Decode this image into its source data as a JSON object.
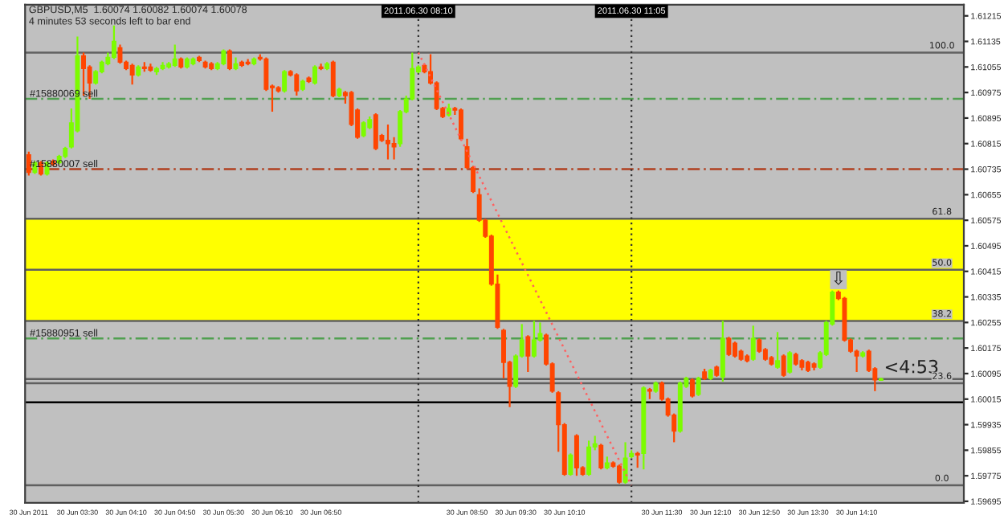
{
  "chart_data": {
    "type": "candlestick",
    "title": "GBPUSD,M5  1.60074 1.60082 1.60074 1.60078",
    "subtitle": "4 minutes 53 seconds left to bar end",
    "x": [
      "2011-06-30T02:50",
      "2011-06-30T02:55",
      "2011-06-30T03:00",
      "2011-06-30T03:05",
      "2011-06-30T03:10",
      "2011-06-30T03:15",
      "2011-06-30T03:20",
      "2011-06-30T03:25",
      "2011-06-30T03:30",
      "2011-06-30T03:35",
      "2011-06-30T03:40",
      "2011-06-30T03:45",
      "2011-06-30T03:50",
      "2011-06-30T03:55",
      "2011-06-30T04:00",
      "2011-06-30T04:05",
      "2011-06-30T04:10",
      "2011-06-30T04:15",
      "2011-06-30T04:20",
      "2011-06-30T04:25",
      "2011-06-30T04:30",
      "2011-06-30T04:35",
      "2011-06-30T04:40",
      "2011-06-30T04:45",
      "2011-06-30T04:50",
      "2011-06-30T04:55",
      "2011-06-30T05:00",
      "2011-06-30T05:05",
      "2011-06-30T05:10",
      "2011-06-30T05:15",
      "2011-06-30T05:20",
      "2011-06-30T05:25",
      "2011-06-30T05:30",
      "2011-06-30T05:35",
      "2011-06-30T05:40",
      "2011-06-30T05:45",
      "2011-06-30T05:50",
      "2011-06-30T05:55",
      "2011-06-30T06:00",
      "2011-06-30T06:05",
      "2011-06-30T06:10",
      "2011-06-30T06:15",
      "2011-06-30T06:20",
      "2011-06-30T06:25",
      "2011-06-30T06:30",
      "2011-06-30T06:35",
      "2011-06-30T06:40",
      "2011-06-30T06:45",
      "2011-06-30T06:50",
      "2011-06-30T06:55",
      "2011-06-30T07:00",
      "2011-06-30T07:05",
      "2011-06-30T07:10",
      "2011-06-30T07:15",
      "2011-06-30T07:20",
      "2011-06-30T07:25",
      "2011-06-30T07:30",
      "2011-06-30T07:35",
      "2011-06-30T07:40",
      "2011-06-30T07:45",
      "2011-06-30T07:50",
      "2011-06-30T07:55",
      "2011-06-30T08:00",
      "2011-06-30T08:05",
      "2011-06-30T08:10",
      "2011-06-30T08:15",
      "2011-06-30T08:20",
      "2011-06-30T08:25",
      "2011-06-30T08:30",
      "2011-06-30T08:35",
      "2011-06-30T08:40",
      "2011-06-30T08:45",
      "2011-06-30T08:50",
      "2011-06-30T08:55",
      "2011-06-30T09:00",
      "2011-06-30T09:05",
      "2011-06-30T09:10",
      "2011-06-30T09:15",
      "2011-06-30T09:20",
      "2011-06-30T09:25",
      "2011-06-30T09:30",
      "2011-06-30T09:35",
      "2011-06-30T09:40",
      "2011-06-30T09:45",
      "2011-06-30T09:50",
      "2011-06-30T09:55",
      "2011-06-30T10:00",
      "2011-06-30T10:05",
      "2011-06-30T10:10",
      "2011-06-30T10:15",
      "2011-06-30T10:20",
      "2011-06-30T10:25",
      "2011-06-30T10:30",
      "2011-06-30T10:35",
      "2011-06-30T10:40",
      "2011-06-30T10:45",
      "2011-06-30T10:50",
      "2011-06-30T10:55",
      "2011-06-30T11:00",
      "2011-06-30T11:05",
      "2011-06-30T11:10",
      "2011-06-30T11:15",
      "2011-06-30T11:20",
      "2011-06-30T11:25",
      "2011-06-30T11:30",
      "2011-06-30T11:35",
      "2011-06-30T11:40",
      "2011-06-30T11:45",
      "2011-06-30T11:50",
      "2011-06-30T11:55",
      "2011-06-30T12:00",
      "2011-06-30T12:05",
      "2011-06-30T12:10",
      "2011-06-30T12:15",
      "2011-06-30T12:20",
      "2011-06-30T12:25",
      "2011-06-30T12:30",
      "2011-06-30T12:35",
      "2011-06-30T12:40",
      "2011-06-30T12:45",
      "2011-06-30T12:50",
      "2011-06-30T12:55",
      "2011-06-30T13:00",
      "2011-06-30T13:05",
      "2011-06-30T13:10",
      "2011-06-30T13:15",
      "2011-06-30T13:20",
      "2011-06-30T13:25",
      "2011-06-30T13:30",
      "2011-06-30T13:35",
      "2011-06-30T13:40",
      "2011-06-30T13:45",
      "2011-06-30T13:50",
      "2011-06-30T13:55",
      "2011-06-30T14:00",
      "2011-06-30T14:05",
      "2011-06-30T14:10",
      "2011-06-30T14:15",
      "2011-06-30T14:20",
      "2011-06-30T14:25",
      "2011-06-30T14:30"
    ],
    "ohlc": [
      [
        1.6078,
        1.6079,
        1.60715,
        1.60725
      ],
      [
        1.60725,
        1.6076,
        1.6072,
        1.60755
      ],
      [
        1.60755,
        1.6076,
        1.60715,
        1.6072
      ],
      [
        1.6072,
        1.6076,
        1.60715,
        1.60755
      ],
      [
        1.6076,
        1.60765,
        1.60745,
        1.6075
      ],
      [
        1.60755,
        1.6078,
        1.6075,
        1.60775
      ],
      [
        1.60775,
        1.60805,
        1.6077,
        1.608
      ],
      [
        1.60805,
        1.60925,
        1.608,
        1.6088
      ],
      [
        1.60855,
        1.6115,
        1.6085,
        1.6109
      ],
      [
        1.6109,
        1.611,
        1.60965,
        1.6105
      ],
      [
        1.61055,
        1.6106,
        1.60955,
        1.61005
      ],
      [
        1.61005,
        1.61045,
        1.61,
        1.6104
      ],
      [
        1.6104,
        1.61075,
        1.61035,
        1.6107
      ],
      [
        1.61065,
        1.611,
        1.6106,
        1.61085
      ],
      [
        1.61085,
        1.61185,
        1.6108,
        1.61135
      ],
      [
        1.61115,
        1.61125,
        1.61065,
        1.6107
      ],
      [
        1.6107,
        1.61075,
        1.61045,
        1.6105
      ],
      [
        1.6106,
        1.61065,
        1.61,
        1.6103
      ],
      [
        1.6103,
        1.6106,
        1.61025,
        1.61055
      ],
      [
        1.61055,
        1.6107,
        1.6104,
        1.6105
      ],
      [
        1.61055,
        1.61065,
        1.6104,
        1.61045
      ],
      [
        1.6104,
        1.61055,
        1.6103,
        1.6105
      ],
      [
        1.6105,
        1.6107,
        1.61045,
        1.6106
      ],
      [
        1.61055,
        1.6107,
        1.6105,
        1.61065
      ],
      [
        1.6106,
        1.61125,
        1.61055,
        1.6108
      ],
      [
        1.6108,
        1.61085,
        1.6105,
        1.61055
      ],
      [
        1.61055,
        1.61085,
        1.6105,
        1.6108
      ],
      [
        1.61065,
        1.61085,
        1.6106,
        1.6108
      ],
      [
        1.61085,
        1.6109,
        1.6107,
        1.61075
      ],
      [
        1.6107,
        1.61075,
        1.6105,
        1.61055
      ],
      [
        1.61065,
        1.6107,
        1.61045,
        1.6105
      ],
      [
        1.6105,
        1.6107,
        1.61045,
        1.61065
      ],
      [
        1.61065,
        1.6111,
        1.6106,
        1.61105
      ],
      [
        1.61105,
        1.6111,
        1.61045,
        1.6105
      ],
      [
        1.6105,
        1.61085,
        1.61045,
        1.61065
      ],
      [
        1.6107,
        1.61075,
        1.61055,
        1.6106
      ],
      [
        1.6107,
        1.6108,
        1.6106,
        1.61065
      ],
      [
        1.61065,
        1.61085,
        1.6106,
        1.6108
      ],
      [
        1.61085,
        1.61095,
        1.61075,
        1.6108
      ],
      [
        1.6108,
        1.61085,
        1.6098,
        1.60985
      ],
      [
        1.60995,
        1.61,
        1.60915,
        1.6099
      ],
      [
        1.6099,
        1.60995,
        1.60975,
        1.6098
      ],
      [
        1.6098,
        1.61045,
        1.60975,
        1.6104
      ],
      [
        1.6104,
        1.61045,
        1.61025,
        1.6103
      ],
      [
        1.6103,
        1.61035,
        1.60965,
        1.6098
      ],
      [
        1.60985,
        1.61015,
        1.6098,
        1.6101
      ],
      [
        1.6102,
        1.61025,
        1.61005,
        1.6101
      ],
      [
        1.61005,
        1.6106,
        1.61,
        1.61055
      ],
      [
        1.61055,
        1.61065,
        1.61045,
        1.6105
      ],
      [
        1.6105,
        1.6107,
        1.61045,
        1.61065
      ],
      [
        1.6107,
        1.61075,
        1.6096,
        1.60965
      ],
      [
        1.60965,
        1.6099,
        1.6096,
        1.60985
      ],
      [
        1.60975,
        1.6098,
        1.6094,
        1.60965
      ],
      [
        1.60975,
        1.6098,
        1.6087,
        1.60875
      ],
      [
        1.6092,
        1.60925,
        1.6083,
        1.60835
      ],
      [
        1.6084,
        1.60885,
        1.60835,
        1.6088
      ],
      [
        1.60865,
        1.609,
        1.6086,
        1.6089
      ],
      [
        1.60905,
        1.6091,
        1.60795,
        1.608
      ],
      [
        1.6084,
        1.60845,
        1.6082,
        1.60825
      ],
      [
        1.60825,
        1.60875,
        1.60765,
        1.60815
      ],
      [
        1.60815,
        1.60835,
        1.60765,
        1.60805
      ],
      [
        1.60815,
        1.6092,
        1.60805,
        1.60915
      ],
      [
        1.60915,
        1.60965,
        1.6091,
        1.60955
      ],
      [
        1.60955,
        1.611,
        1.6095,
        1.6105
      ],
      [
        1.6104,
        1.6106,
        1.61035,
        1.61055
      ],
      [
        1.6106,
        1.61065,
        1.61035,
        1.6104
      ],
      [
        1.6104,
        1.61095,
        1.61,
        1.61005
      ],
      [
        1.61005,
        1.6101,
        1.6092,
        1.60925
      ],
      [
        1.60925,
        1.6093,
        1.60895,
        1.609
      ],
      [
        1.60905,
        1.6094,
        1.609,
        1.60925
      ],
      [
        1.60925,
        1.6093,
        1.60905,
        1.6092
      ],
      [
        1.6092,
        1.60925,
        1.60825,
        1.6083
      ],
      [
        1.60805,
        1.6083,
        1.60735,
        1.6074
      ],
      [
        1.6074,
        1.60745,
        1.6066,
        1.60665
      ],
      [
        1.60655,
        1.60675,
        1.6057,
        1.60575
      ],
      [
        1.60575,
        1.6058,
        1.6052,
        1.60525
      ],
      [
        1.60525,
        1.6053,
        1.6037,
        1.60375
      ],
      [
        1.60375,
        1.60405,
        1.60235,
        1.6024
      ],
      [
        1.6023,
        1.60235,
        1.6008,
        1.6013
      ],
      [
        1.6013,
        1.60135,
        1.5999,
        1.60055
      ],
      [
        1.60055,
        1.60155,
        1.6005,
        1.6015
      ],
      [
        1.6015,
        1.6025,
        1.60145,
        1.602
      ],
      [
        1.6021,
        1.60215,
        1.601,
        1.6015
      ],
      [
        1.6015,
        1.6026,
        1.60145,
        1.602
      ],
      [
        1.602,
        1.60255,
        1.60195,
        1.6022
      ],
      [
        1.60215,
        1.6022,
        1.6012,
        1.60125
      ],
      [
        1.60125,
        1.6013,
        1.60035,
        1.6004
      ],
      [
        1.60035,
        1.6004,
        1.5985,
        1.59935
      ],
      [
        1.59935,
        1.5994,
        1.59775,
        1.5978
      ],
      [
        1.5978,
        1.59845,
        1.59775,
        1.5984
      ],
      [
        1.599,
        1.59905,
        1.59775,
        1.598
      ],
      [
        1.598,
        1.59805,
        1.59775,
        1.5978
      ],
      [
        1.5978,
        1.59885,
        1.59775,
        1.59865
      ],
      [
        1.59865,
        1.599,
        1.59855,
        1.59875
      ],
      [
        1.5987,
        1.59875,
        1.59795,
        1.598
      ],
      [
        1.598,
        1.59835,
        1.59795,
        1.59815
      ],
      [
        1.59815,
        1.5982,
        1.598,
        1.59805
      ],
      [
        1.59805,
        1.5981,
        1.5975,
        1.59755
      ],
      [
        1.59755,
        1.5988,
        1.5975,
        1.5983
      ],
      [
        1.59835,
        1.59855,
        1.5983,
        1.59845
      ],
      [
        1.59845,
        1.5985,
        1.598,
        1.5984
      ],
      [
        1.59845,
        1.60055,
        1.59795,
        1.6005
      ],
      [
        1.60045,
        1.6005,
        1.60015,
        1.6004
      ],
      [
        1.6004,
        1.6007,
        1.60035,
        1.60065
      ],
      [
        1.60065,
        1.6007,
        1.6001,
        1.60015
      ],
      [
        1.60015,
        1.6002,
        1.5996,
        1.59965
      ],
      [
        1.59965,
        1.5997,
        1.5988,
        1.59915
      ],
      [
        1.59915,
        1.6007,
        1.5991,
        1.60065
      ],
      [
        1.60055,
        1.60085,
        1.6005,
        1.6008
      ],
      [
        1.60075,
        1.6008,
        1.6002,
        1.60025
      ],
      [
        1.6003,
        1.60085,
        1.60025,
        1.6008
      ],
      [
        1.601,
        1.6011,
        1.60075,
        1.6008
      ],
      [
        1.6008,
        1.6011,
        1.60075,
        1.60105
      ],
      [
        1.60115,
        1.6012,
        1.60085,
        1.6009
      ],
      [
        1.60085,
        1.6026,
        1.6007,
        1.60205
      ],
      [
        1.60205,
        1.6021,
        1.6015,
        1.60155
      ],
      [
        1.6019,
        1.60195,
        1.60145,
        1.6015
      ],
      [
        1.60165,
        1.6017,
        1.60135,
        1.6014
      ],
      [
        1.6015,
        1.60155,
        1.6013,
        1.60135
      ],
      [
        1.6014,
        1.60245,
        1.60135,
        1.60205
      ],
      [
        1.602,
        1.60205,
        1.6016,
        1.60165
      ],
      [
        1.6017,
        1.60175,
        1.60135,
        1.6014
      ],
      [
        1.60145,
        1.6015,
        1.6012,
        1.60125
      ],
      [
        1.60115,
        1.60225,
        1.6011,
        1.60135
      ],
      [
        1.6015,
        1.60155,
        1.60085,
        1.6009
      ],
      [
        1.601,
        1.60165,
        1.60095,
        1.6016
      ],
      [
        1.60155,
        1.6016,
        1.6012,
        1.60125
      ],
      [
        1.60135,
        1.6014,
        1.60105,
        1.60115
      ],
      [
        1.6013,
        1.60135,
        1.601,
        1.60105
      ],
      [
        1.60125,
        1.6013,
        1.60105,
        1.60115
      ],
      [
        1.60115,
        1.60165,
        1.6011,
        1.6016
      ],
      [
        1.60155,
        1.6026,
        1.6015,
        1.60255
      ],
      [
        1.6025,
        1.60355,
        1.60245,
        1.6035
      ],
      [
        1.6035,
        1.60355,
        1.60325,
        1.6033
      ],
      [
        1.6033,
        1.60335,
        1.60195,
        1.602
      ],
      [
        1.602,
        1.60205,
        1.6016,
        1.60165
      ],
      [
        1.60165,
        1.6017,
        1.601,
        1.6015
      ],
      [
        1.6015,
        1.60165,
        1.60145,
        1.6016
      ],
      [
        1.60165,
        1.6017,
        1.601,
        1.60105
      ],
      [
        1.6011,
        1.60115,
        1.6004,
        1.60075
      ],
      [
        1.60074,
        1.60082,
        1.60074,
        1.60078
      ]
    ],
    "colors": [
      "#ff4500",
      "#7cfc00",
      "#ff4500",
      "#7cfc00",
      "#ff4500",
      "#7cfc00",
      "#7cfc00",
      "#7cfc00",
      "#7cfc00",
      "#ff4500",
      "#ff4500",
      "#7cfc00",
      "#7cfc00",
      "#7cfc00",
      "#7cfc00",
      "#ff4500",
      "#ff4500",
      "#ff4500",
      "#7cfc00",
      "#ff4500",
      "#ff4500",
      "#7cfc00",
      "#7cfc00",
      "#7cfc00",
      "#7cfc00",
      "#ff4500",
      "#7cfc00",
      "#7cfc00",
      "#ff4500",
      "#ff4500",
      "#ff4500",
      "#7cfc00",
      "#7cfc00",
      "#ff4500",
      "#7cfc00",
      "#ff4500",
      "#ff4500",
      "#7cfc00",
      "#ff4500",
      "#ff4500",
      "#ff4500",
      "#ff4500",
      "#7cfc00",
      "#ff4500",
      "#ff4500",
      "#7cfc00",
      "#ff4500",
      "#7cfc00",
      "#ff4500",
      "#7cfc00",
      "#ff4500",
      "#7cfc00",
      "#ff4500",
      "#ff4500",
      "#ff4500",
      "#7cfc00",
      "#7cfc00",
      "#ff4500",
      "#ff4500",
      "#ff4500",
      "#ff4500",
      "#7cfc00",
      "#7cfc00",
      "#7cfc00",
      "#7cfc00",
      "#ff4500",
      "#ff4500",
      "#ff4500",
      "#ff4500",
      "#7cfc00",
      "#ff4500",
      "#ff4500",
      "#ff4500",
      "#ff4500",
      "#ff4500",
      "#ff4500",
      "#ff4500",
      "#ff4500",
      "#ff4500",
      "#ff4500",
      "#7cfc00",
      "#7cfc00",
      "#ff4500",
      "#7cfc00",
      "#7cfc00",
      "#ff4500",
      "#ff4500",
      "#ff4500",
      "#ff4500",
      "#7cfc00",
      "#ff4500",
      "#ff4500",
      "#7cfc00",
      "#7cfc00",
      "#ff4500",
      "#7cfc00",
      "#ff4500",
      "#ff4500",
      "#7cfc00",
      "#7cfc00",
      "#ff4500",
      "#7cfc00",
      "#ff4500",
      "#7cfc00",
      "#ff4500",
      "#ff4500",
      "#ff4500",
      "#7cfc00",
      "#7cfc00",
      "#ff4500",
      "#7cfc00",
      "#ff4500",
      "#7cfc00",
      "#ff4500",
      "#7cfc00",
      "#ff4500",
      "#ff4500",
      "#ff4500",
      "#ff4500",
      "#7cfc00",
      "#ff4500",
      "#ff4500",
      "#ff4500",
      "#7cfc00",
      "#ff4500",
      "#7cfc00",
      "#ff4500",
      "#ff4500",
      "#ff4500",
      "#ff4500",
      "#7cfc00",
      "#7cfc00",
      "#7cfc00",
      "#ff4500",
      "#ff4500",
      "#ff4500",
      "#ff4500",
      "#7cfc00",
      "#ff4500",
      "#ff4500",
      "#7cfc00"
    ],
    "series": [
      {
        "type": "line",
        "x": [
          "2011-06-30T08:10",
          "2011-06-30T11:05"
        ],
        "values": [
          1.611,
          1.59745
        ],
        "color": "#ff6060",
        "line_style": "dotted"
      }
    ],
    "xlim": [
      "2011-06-30T02:47",
      "2011-06-30T15:38"
    ],
    "xticks": [
      {
        "value": "2011-06-30T02:50",
        "label": "30 Jun 2011"
      },
      {
        "value": "2011-06-30T03:30",
        "label": "30 Jun 03:30"
      },
      {
        "value": "2011-06-30T04:10",
        "label": "30 Jun 04:10"
      },
      {
        "value": "2011-06-30T04:50",
        "label": "30 Jun 04:50"
      },
      {
        "value": "2011-06-30T05:30",
        "label": "30 Jun 05:30"
      },
      {
        "value": "2011-06-30T06:10",
        "label": "30 Jun 06:10"
      },
      {
        "value": "2011-06-30T06:50",
        "label": "30 Jun 06:50"
      },
      {
        "value": "2011-06-30T08:50",
        "label": "30 Jun 08:50"
      },
      {
        "value": "2011-06-30T09:30",
        "label": "30 Jun 09:30"
      },
      {
        "value": "2011-06-30T10:10",
        "label": "30 Jun 10:10"
      },
      {
        "value": "2011-06-30T11:30",
        "label": "30 Jun 11:30"
      },
      {
        "value": "2011-06-30T12:10",
        "label": "30 Jun 12:10"
      },
      {
        "value": "2011-06-30T12:50",
        "label": "30 Jun 12:50"
      },
      {
        "value": "2011-06-30T13:30",
        "label": "30 Jun 13:30"
      },
      {
        "value": "2011-06-30T14:10",
        "label": "30 Jun 14:10"
      }
    ],
    "ylim": [
      1.5969,
      1.6125
    ],
    "yticks": [
      1.61215,
      1.61135,
      1.61055,
      1.60975,
      1.60895,
      1.60815,
      1.60735,
      1.60655,
      1.60575,
      1.60495,
      1.60415,
      1.60335,
      1.60255,
      1.60175,
      1.60095,
      1.60015,
      1.59935,
      1.59855,
      1.59775,
      1.59695
    ],
    "ref_lines": [
      {
        "axis": "y",
        "value": 1.611,
        "color": "#606060",
        "line_style": "solid"
      },
      {
        "axis": "y",
        "value": 1.6058,
        "color": "#606060",
        "line_style": "solid"
      },
      {
        "axis": "y",
        "value": 1.6042,
        "color": "#606060",
        "line_style": "solid"
      },
      {
        "axis": "y",
        "value": 1.6026,
        "color": "#606060",
        "line_style": "solid"
      },
      {
        "axis": "y",
        "value": 1.60065,
        "color": "#606060",
        "line_style": "solid"
      },
      {
        "axis": "y",
        "value": 1.59745,
        "color": "#606060",
        "line_style": "solid"
      },
      {
        "axis": "y",
        "value": 1.60955,
        "label": "#15880069 sell",
        "color": "#50a050",
        "line_style": "dashed"
      },
      {
        "axis": "y",
        "value": 1.60735,
        "label": "#15880007 sell",
        "color": "#b04020",
        "line_style": "dashed"
      },
      {
        "axis": "y",
        "value": 1.60205,
        "label": "#15880951 sell",
        "color": "#50a050",
        "line_style": "dashed"
      },
      {
        "axis": "y",
        "value": 1.60078,
        "color": "#606060",
        "line_style": "solid"
      },
      {
        "axis": "y",
        "value": 1.60005,
        "color": "#000000",
        "line_style": "solid"
      },
      {
        "axis": "x",
        "value": "2011-06-30T08:10",
        "label": "2011.06.30 08:10",
        "color": "#303030",
        "line_style": "dotted"
      },
      {
        "axis": "x",
        "value": "2011-06-30T11:05",
        "label": "2011.06.30 11:05",
        "color": "#303030",
        "line_style": "dotted"
      }
    ],
    "bands": [
      {
        "axis": "y",
        "from": 1.6026,
        "to": 1.6058,
        "color": "#ffff00"
      }
    ],
    "annotations": [
      {
        "text": "⇩",
        "x": "2011-06-30T13:55",
        "y": 1.60355
      },
      {
        "text": "<4:53",
        "x": "2011-06-30T14:55",
        "y": 1.60078
      },
      {
        "text": "100.0",
        "x": "2011-06-30T15:20",
        "y": 1.611
      },
      {
        "text": "61.8",
        "x": "2011-06-30T15:20",
        "y": 1.6058
      },
      {
        "text": "50.0",
        "x": "2011-06-30T15:20",
        "y": 1.6042
      },
      {
        "text": "38.2",
        "x": "2011-06-30T15:20",
        "y": 1.6026
      },
      {
        "text": "23.6",
        "x": "2011-06-30T15:20",
        "y": 1.60065
      },
      {
        "text": "0.0",
        "x": "2011-06-30T15:20",
        "y": 1.59745
      }
    ]
  }
}
